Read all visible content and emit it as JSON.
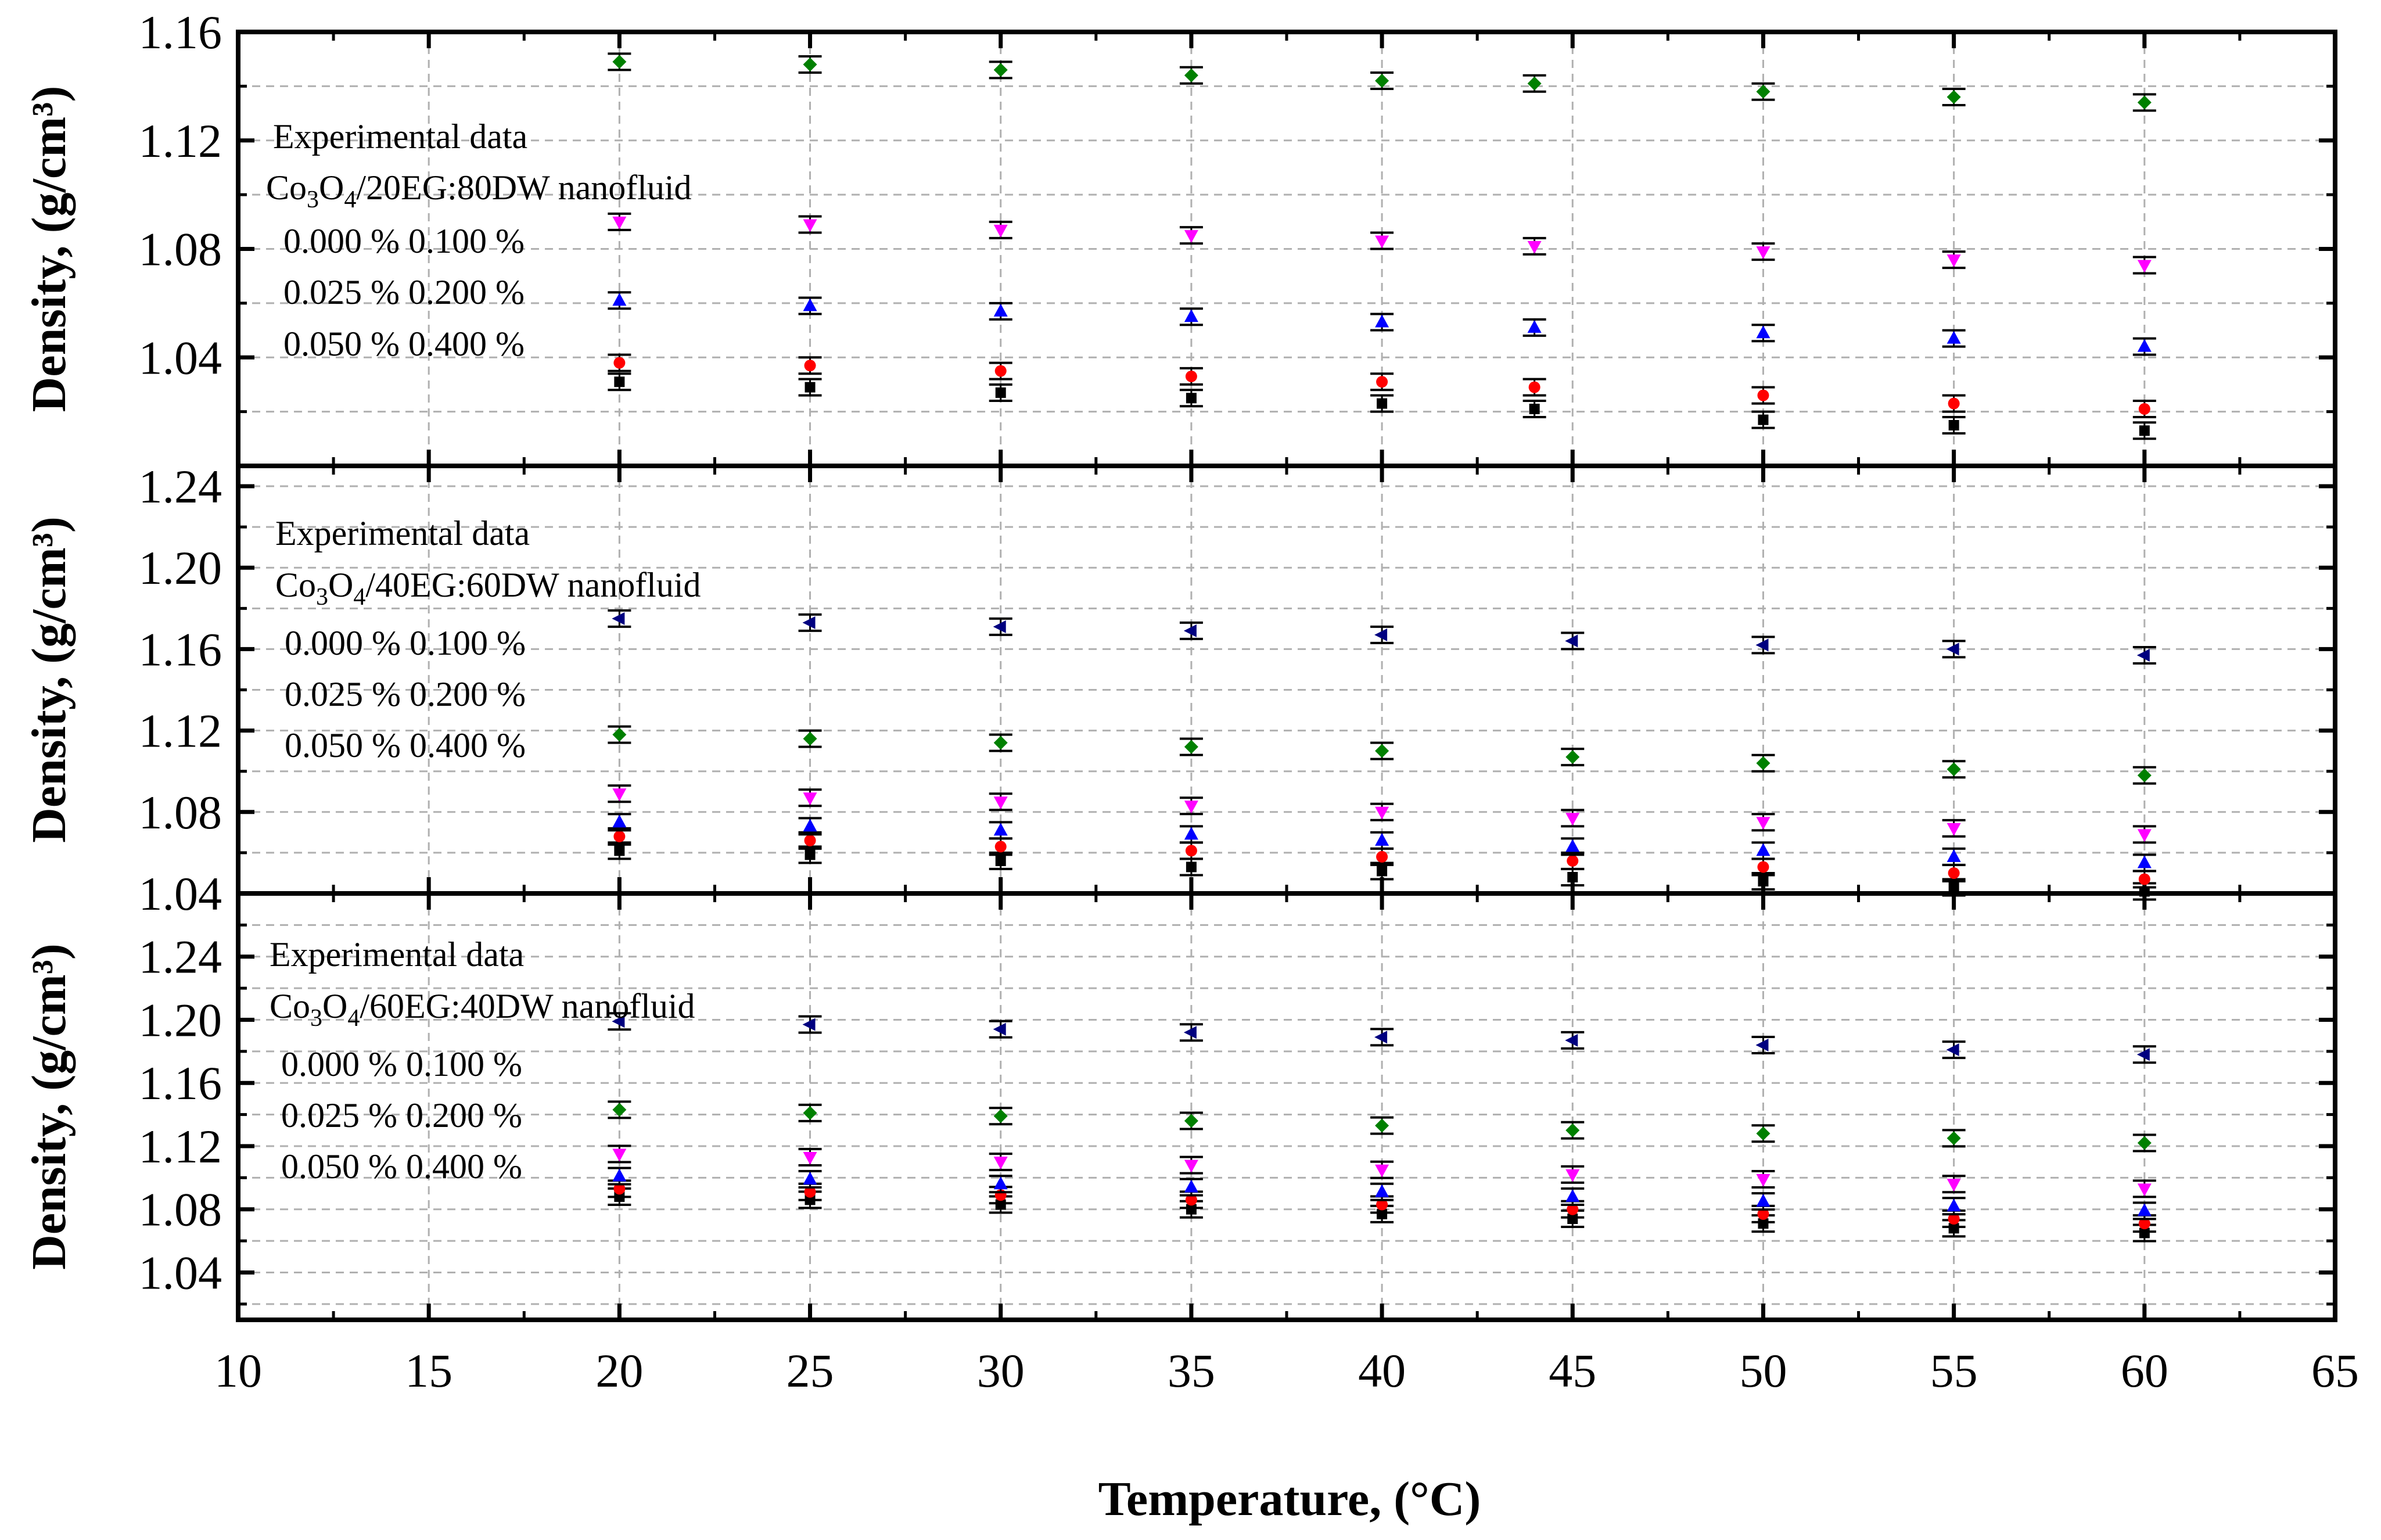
{
  "chart_data": {
    "type": "scatter",
    "xlabel": "Temperature, (°C)",
    "xlim": [
      10,
      65
    ],
    "xticks": [
      10,
      15,
      20,
      25,
      30,
      35,
      40,
      45,
      50,
      55,
      60,
      65
    ],
    "colors": {
      "0.000 %": "#000000",
      "0.025 %": "#ff0000",
      "0.050 %": "#0000ff",
      "0.100 %": "#ff00ff",
      "0.200 %": "#008000",
      "0.400 %": "#000080"
    },
    "panels": [
      {
        "ylabel": "Density, (g/cm³)",
        "ylim": [
          1.0,
          1.16
        ],
        "yticks": [
          "1.04",
          "1.08",
          "1.12",
          "1.16"
        ],
        "title_line1": "Experimental data",
        "title_line2_prefix": "Co",
        "title_line2_sub1": "3",
        "title_line2_mid": "O",
        "title_line2_sub2": "4",
        "title_line2_suffix": "/20EG:80DW nanofluid",
        "legend_rows": [
          "0.000 % 0.100 %",
          "0.025 % 0.200 %",
          "0.050 % 0.400 %"
        ],
        "series": [
          {
            "name": "0.000 %",
            "marker": "square",
            "x": [
              20,
              25,
              30,
              35,
              40,
              44,
              50,
              55,
              60
            ],
            "y": [
              1.031,
              1.029,
              1.027,
              1.025,
              1.023,
              1.021,
              1.017,
              1.015,
              1.013
            ]
          },
          {
            "name": "0.025 %",
            "marker": "circle",
            "x": [
              20,
              25,
              30,
              35,
              40,
              44,
              50,
              55,
              60
            ],
            "y": [
              1.038,
              1.037,
              1.035,
              1.033,
              1.031,
              1.029,
              1.026,
              1.023,
              1.021
            ]
          },
          {
            "name": "0.050 %",
            "marker": "triangle-up",
            "x": [
              20,
              25,
              30,
              35,
              40,
              44,
              50,
              55,
              60
            ],
            "y": [
              1.061,
              1.059,
              1.057,
              1.055,
              1.053,
              1.051,
              1.049,
              1.047,
              1.044
            ]
          },
          {
            "name": "0.100 %",
            "marker": "triangle-down",
            "x": [
              20,
              25,
              30,
              35,
              40,
              44,
              50,
              55,
              60
            ],
            "y": [
              1.09,
              1.089,
              1.087,
              1.085,
              1.083,
              1.081,
              1.079,
              1.076,
              1.074
            ]
          },
          {
            "name": "0.200 %",
            "marker": "diamond",
            "x": [
              20,
              25,
              30,
              35,
              40,
              44,
              50,
              55,
              60
            ],
            "y": [
              1.149,
              1.148,
              1.146,
              1.144,
              1.142,
              1.141,
              1.138,
              1.136,
              1.134
            ]
          }
        ]
      },
      {
        "ylabel": "Density, (g/cm³)",
        "ylim": [
          1.04,
          1.25
        ],
        "yticks": [
          "1.04",
          "1.08",
          "1.12",
          "1.16",
          "1.20",
          "1.24"
        ],
        "title_line1": "Experimental data",
        "title_line2_prefix": "Co",
        "title_line2_sub1": "3",
        "title_line2_mid": "O",
        "title_line2_sub2": "4",
        "title_line2_suffix": "/40EG:60DW nanofluid",
        "legend_rows": [
          "0.000 % 0.100 %",
          "0.025 % 0.200 %",
          "0.050 % 0.400 %"
        ],
        "series": [
          {
            "name": "0.000 %",
            "marker": "square",
            "x": [
              20,
              25,
              30,
              35,
              40,
              45,
              50,
              55,
              60
            ],
            "y": [
              1.061,
              1.059,
              1.056,
              1.053,
              1.051,
              1.048,
              1.046,
              1.043,
              1.041
            ]
          },
          {
            "name": "0.025 %",
            "marker": "circle",
            "x": [
              20,
              25,
              30,
              35,
              40,
              45,
              50,
              55,
              60
            ],
            "y": [
              1.068,
              1.066,
              1.063,
              1.061,
              1.058,
              1.056,
              1.053,
              1.05,
              1.047
            ]
          },
          {
            "name": "0.050 %",
            "marker": "triangle-up",
            "x": [
              20,
              25,
              30,
              35,
              40,
              45,
              50,
              55,
              60
            ],
            "y": [
              1.075,
              1.073,
              1.071,
              1.069,
              1.066,
              1.063,
              1.061,
              1.058,
              1.055
            ]
          },
          {
            "name": "0.100 %",
            "marker": "triangle-down",
            "x": [
              20,
              25,
              30,
              35,
              40,
              45,
              50,
              55,
              60
            ],
            "y": [
              1.089,
              1.087,
              1.085,
              1.083,
              1.08,
              1.077,
              1.075,
              1.072,
              1.069
            ]
          },
          {
            "name": "0.200 %",
            "marker": "diamond",
            "x": [
              20,
              25,
              30,
              35,
              40,
              45,
              50,
              55,
              60
            ],
            "y": [
              1.118,
              1.116,
              1.114,
              1.112,
              1.11,
              1.107,
              1.104,
              1.101,
              1.098
            ]
          },
          {
            "name": "0.400 %",
            "marker": "triangle-left",
            "x": [
              20,
              25,
              30,
              35,
              40,
              45,
              50,
              55,
              60
            ],
            "y": [
              1.175,
              1.173,
              1.171,
              1.169,
              1.167,
              1.164,
              1.162,
              1.16,
              1.157
            ]
          }
        ]
      },
      {
        "ylabel": "Density, (g/cm³)",
        "ylim": [
          1.01,
          1.28
        ],
        "yticks": [
          "1.04",
          "1.08",
          "1.12",
          "1.16",
          "1.20",
          "1.24"
        ],
        "title_line1": "Experimental data",
        "title_line2_prefix": "Co",
        "title_line2_sub1": "3",
        "title_line2_mid": "O",
        "title_line2_sub2": "4",
        "title_line2_suffix": "/60EG:40DW nanofluid",
        "legend_rows": [
          "0.000 % 0.100 %",
          "0.025 % 0.200 %",
          "0.050 % 0.400 %"
        ],
        "series": [
          {
            "name": "0.000 %",
            "marker": "square",
            "x": [
              20,
              25,
              30,
              35,
              40,
              45,
              50,
              55,
              60
            ],
            "y": [
              1.088,
              1.086,
              1.083,
              1.08,
              1.077,
              1.074,
              1.071,
              1.068,
              1.065
            ]
          },
          {
            "name": "0.025 %",
            "marker": "circle",
            "x": [
              20,
              25,
              30,
              35,
              40,
              45,
              50,
              55,
              60
            ],
            "y": [
              1.093,
              1.091,
              1.089,
              1.086,
              1.083,
              1.08,
              1.077,
              1.074,
              1.071
            ]
          },
          {
            "name": "0.050 %",
            "marker": "triangle-up",
            "x": [
              20,
              25,
              30,
              35,
              40,
              45,
              50,
              55,
              60
            ],
            "y": [
              1.101,
              1.099,
              1.096,
              1.094,
              1.091,
              1.088,
              1.085,
              1.082,
              1.079
            ]
          },
          {
            "name": "0.100 %",
            "marker": "triangle-down",
            "x": [
              20,
              25,
              30,
              35,
              40,
              45,
              50,
              55,
              60
            ],
            "y": [
              1.115,
              1.113,
              1.11,
              1.108,
              1.105,
              1.102,
              1.099,
              1.096,
              1.093
            ]
          },
          {
            "name": "0.200 %",
            "marker": "diamond",
            "x": [
              20,
              25,
              30,
              35,
              40,
              45,
              50,
              55,
              60
            ],
            "y": [
              1.143,
              1.141,
              1.139,
              1.136,
              1.133,
              1.13,
              1.128,
              1.125,
              1.122
            ]
          },
          {
            "name": "0.400 %",
            "marker": "triangle-left",
            "x": [
              20,
              25,
              30,
              35,
              40,
              45,
              50,
              55,
              60
            ],
            "y": [
              1.199,
              1.197,
              1.194,
              1.192,
              1.189,
              1.187,
              1.184,
              1.181,
              1.178
            ]
          }
        ]
      }
    ]
  }
}
